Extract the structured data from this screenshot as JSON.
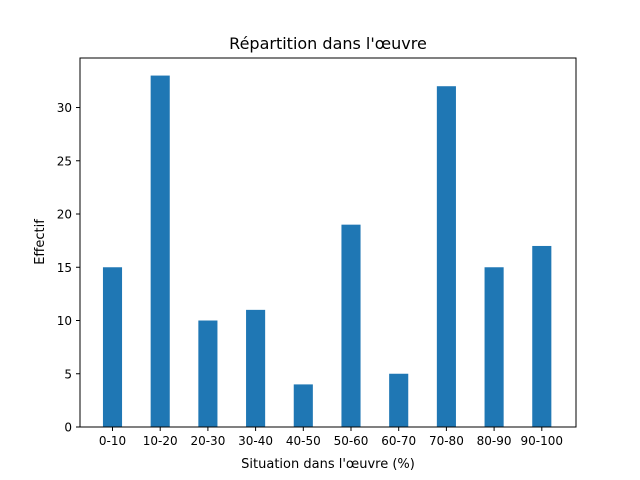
{
  "chart_data": {
    "type": "bar",
    "title": "Répartition dans l'œuvre",
    "xlabel": "Situation dans l'œuvre (%)",
    "ylabel": "Effectif",
    "categories": [
      "0-10",
      "10-20",
      "20-30",
      "30-40",
      "40-50",
      "50-60",
      "60-70",
      "70-80",
      "80-90",
      "90-100"
    ],
    "values": [
      15,
      33,
      10,
      11,
      4,
      19,
      5,
      32,
      15,
      17
    ],
    "ylim": [
      0,
      34.65
    ],
    "yticks": [
      0,
      5,
      10,
      15,
      20,
      25,
      30
    ],
    "grid": false,
    "bar_color": "#1f77b4"
  }
}
